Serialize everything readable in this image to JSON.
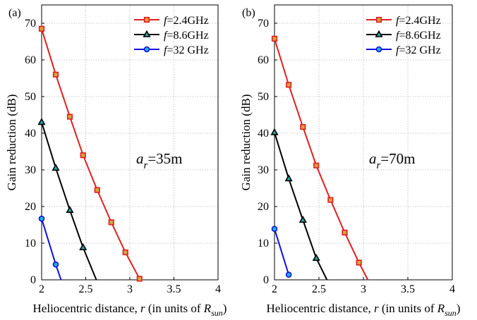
{
  "chart_data": [
    {
      "type": "line",
      "panel_label": "(a)",
      "ylabel": "Gain reduction (dB)",
      "xlabel": {
        "prefix": "Heliocentric distance, ",
        "var": "r",
        "mid": " (in units of ",
        "R": "R",
        "sub": "sun",
        "suffix": ")"
      },
      "xlim": [
        2,
        4
      ],
      "ylim": [
        0,
        75
      ],
      "xticks": [
        2,
        2.5,
        3,
        3.5,
        4
      ],
      "xtick_labels": [
        "2",
        "2.5",
        "3",
        "3.5",
        "4"
      ],
      "yticks": [
        0,
        10,
        20,
        30,
        40,
        50,
        60,
        70
      ],
      "ytick_labels": [
        "0",
        "10",
        "20",
        "30",
        "40",
        "50",
        "60",
        "70"
      ],
      "grid": true,
      "legend_position": "top-right",
      "annotation": {
        "a": "a",
        "sub": "r",
        "rest": "=35m"
      },
      "series": [
        {
          "name": "f=2.4GHz",
          "name_f": "f",
          "name_rest": "=2.4GHz",
          "color": "#e02020",
          "marker": "square",
          "x": [
            2.0,
            2.16,
            2.32,
            2.47,
            2.63,
            2.79,
            2.95,
            3.11
          ],
          "y": [
            68.5,
            56.0,
            44.5,
            34.0,
            24.5,
            15.7,
            7.5,
            0.3
          ]
        },
        {
          "name": "f=8.6GHz",
          "name_f": "f",
          "name_rest": "=8.6GHz",
          "color": "#000000",
          "marker": "triangle",
          "x": [
            2.0,
            2.16,
            2.32,
            2.47,
            2.62
          ],
          "y": [
            43.0,
            30.5,
            19.0,
            8.8,
            0
          ]
        },
        {
          "name": "f=32 GHz",
          "name_f": "f",
          "name_rest": "=32 GHz",
          "color": "#1010e0",
          "marker": "circle",
          "x": [
            2.0,
            2.16,
            2.22
          ],
          "y": [
            16.7,
            4.2,
            0
          ]
        }
      ]
    },
    {
      "type": "line",
      "panel_label": "(b)",
      "ylabel": "Gain reduction (dB)",
      "xlabel": {
        "prefix": "Heliocentric distance, ",
        "var": "r",
        "mid": " (in units of ",
        "R": "R",
        "sub": "sun",
        "suffix": ")"
      },
      "xlim": [
        2,
        4
      ],
      "ylim": [
        0,
        75
      ],
      "xticks": [
        2,
        2.5,
        3,
        3.5,
        4
      ],
      "xtick_labels": [
        "2",
        "2.5",
        "3",
        "3.5",
        "4"
      ],
      "yticks": [
        0,
        10,
        20,
        30,
        40,
        50,
        60,
        70
      ],
      "ytick_labels": [
        "0",
        "10",
        "20",
        "30",
        "40",
        "50",
        "60",
        "70"
      ],
      "grid": true,
      "legend_position": "top-right",
      "annotation": {
        "a": "a",
        "sub": "r",
        "rest": "=70m"
      },
      "series": [
        {
          "name": "f=2.4GHz",
          "name_f": "f",
          "name_rest": "=2.4GHz",
          "color": "#e02020",
          "marker": "square",
          "x": [
            2.0,
            2.16,
            2.32,
            2.47,
            2.63,
            2.79,
            2.95,
            3.05
          ],
          "y": [
            65.8,
            53.2,
            41.7,
            31.2,
            21.8,
            12.9,
            4.7,
            0
          ]
        },
        {
          "name": "f=8.6GHz",
          "name_f": "f",
          "name_rest": "=8.6GHz",
          "color": "#000000",
          "marker": "triangle",
          "x": [
            2.0,
            2.16,
            2.32,
            2.47,
            2.59
          ],
          "y": [
            40.2,
            27.6,
            16.3,
            5.9,
            0
          ]
        },
        {
          "name": "f=32 GHz",
          "name_f": "f",
          "name_rest": "=32 GHz",
          "color": "#1010e0",
          "marker": "circle",
          "x": [
            2.0,
            2.16
          ],
          "y": [
            13.9,
            1.4
          ]
        }
      ]
    }
  ]
}
